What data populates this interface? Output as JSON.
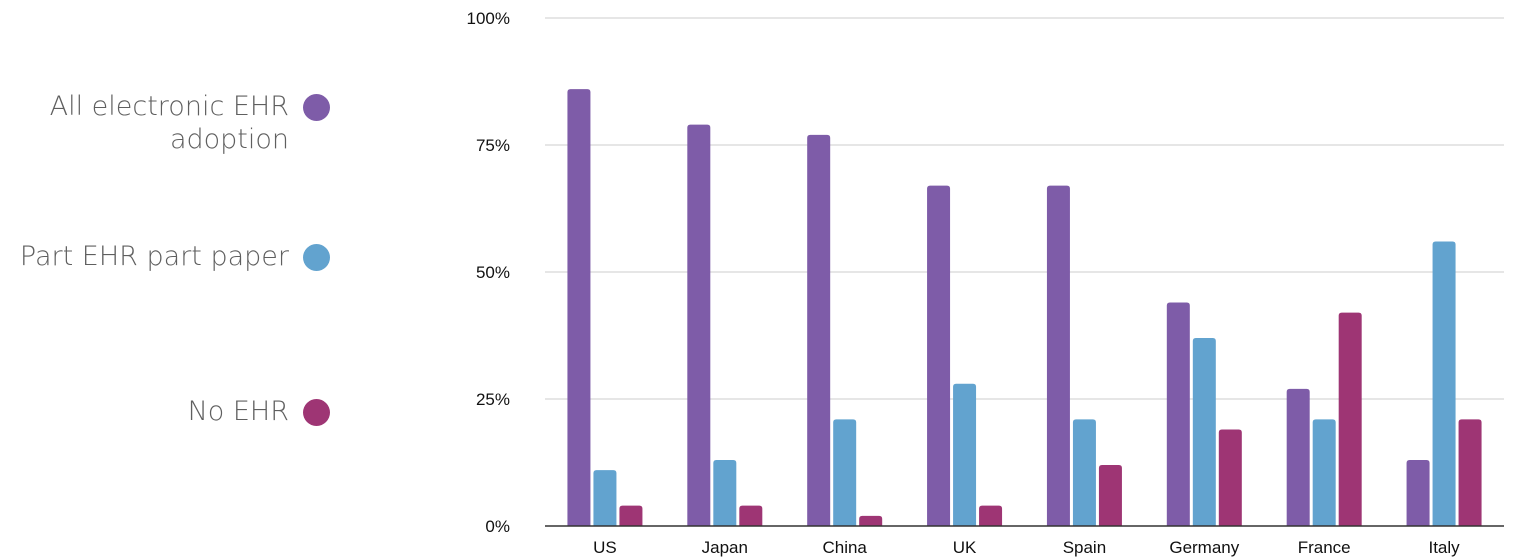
{
  "chart_data": {
    "type": "bar",
    "categories": [
      "US",
      "Japan",
      "China",
      "UK",
      "Spain",
      "Germany",
      "France",
      "Italy"
    ],
    "series": [
      {
        "name": "All electronic EHR adoption",
        "color": "#7e5ca8",
        "values": [
          86,
          79,
          77,
          67,
          67,
          44,
          27,
          13
        ]
      },
      {
        "name": "Part EHR part paper",
        "color": "#62a3cf",
        "values": [
          11,
          13,
          21,
          28,
          21,
          37,
          21,
          56
        ]
      },
      {
        "name": "No EHR",
        "color": "#9e3574",
        "values": [
          4,
          4,
          2,
          4,
          12,
          19,
          42,
          21
        ]
      }
    ],
    "yticks": [
      "0%",
      "25%",
      "50%",
      "75%",
      "100%"
    ],
    "ylim": [
      0,
      100
    ],
    "grid": true,
    "legend_position": "left"
  }
}
